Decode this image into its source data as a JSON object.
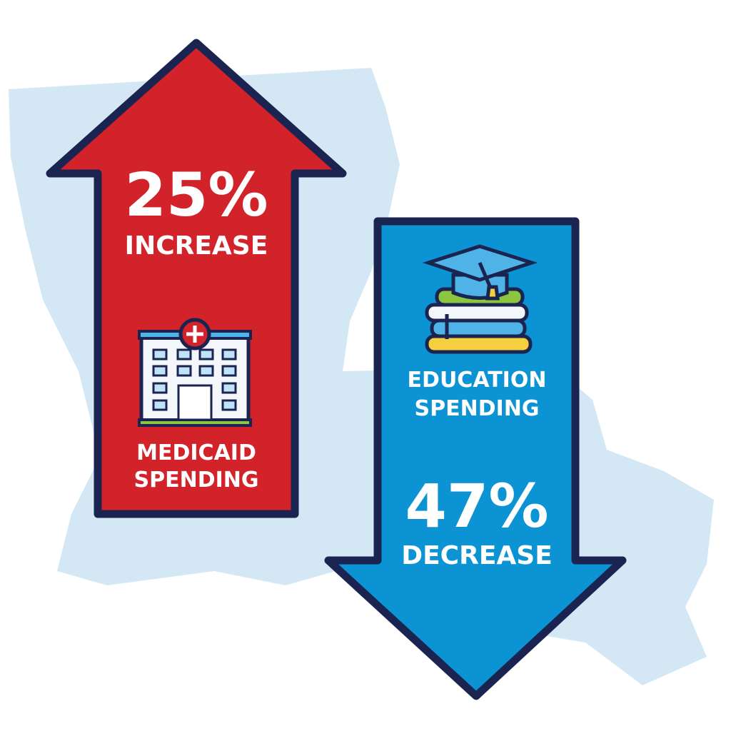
{
  "increase": {
    "percent": "25%",
    "direction": "INCREASE",
    "category": [
      "MEDICAID",
      "SPENDING"
    ]
  },
  "decrease": {
    "percent": "47%",
    "direction": "DECREASE",
    "category": [
      "EDUCATION",
      "SPENDING"
    ]
  }
}
